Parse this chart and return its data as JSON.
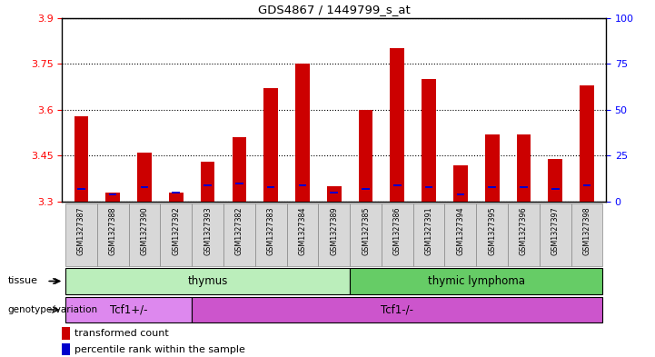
{
  "title": "GDS4867 / 1449799_s_at",
  "samples": [
    "GSM1327387",
    "GSM1327388",
    "GSM1327390",
    "GSM1327392",
    "GSM1327393",
    "GSM1327382",
    "GSM1327383",
    "GSM1327384",
    "GSM1327389",
    "GSM1327385",
    "GSM1327386",
    "GSM1327391",
    "GSM1327394",
    "GSM1327395",
    "GSM1327396",
    "GSM1327397",
    "GSM1327398"
  ],
  "transformed_count": [
    3.58,
    3.33,
    3.46,
    3.33,
    3.43,
    3.51,
    3.67,
    3.75,
    3.35,
    3.6,
    3.8,
    3.7,
    3.42,
    3.52,
    3.52,
    3.44,
    3.68
  ],
  "percentile_rank": [
    7,
    4,
    8,
    5,
    9,
    10,
    8,
    9,
    5,
    7,
    9,
    8,
    4,
    8,
    8,
    7,
    9
  ],
  "ymin": 3.3,
  "ymax": 3.9,
  "yticks_left": [
    3.3,
    3.45,
    3.6,
    3.75,
    3.9
  ],
  "yticks_right": [
    0,
    25,
    50,
    75,
    100
  ],
  "bar_color": "#cc0000",
  "percentile_color": "#0000cc",
  "tissue_regions": [
    {
      "start": 0,
      "end": 9,
      "text": "thymus",
      "color": "#bbeebb"
    },
    {
      "start": 9,
      "end": 17,
      "text": "thymic lymphoma",
      "color": "#66cc66"
    }
  ],
  "geno_regions": [
    {
      "start": 0,
      "end": 4,
      "text": "Tcf1+/-",
      "color": "#dd88ee"
    },
    {
      "start": 4,
      "end": 17,
      "text": "Tcf1-/-",
      "color": "#cc55cc"
    }
  ],
  "bar_width": 0.45
}
